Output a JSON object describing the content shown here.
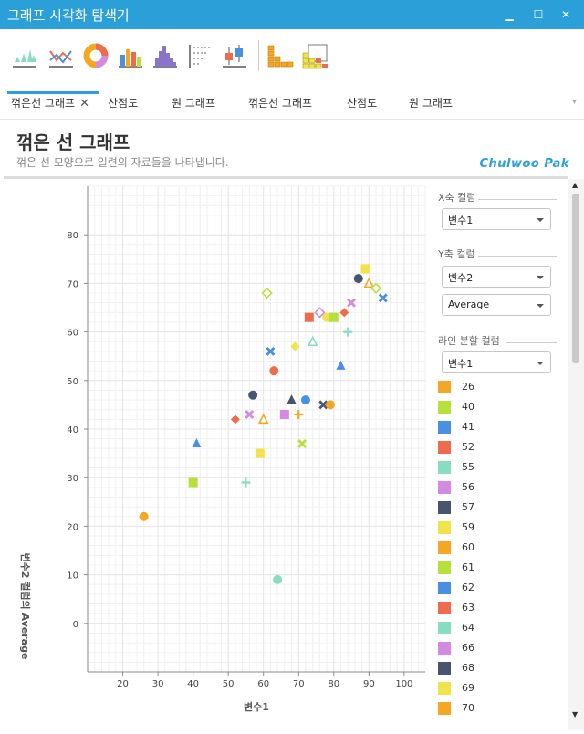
{
  "window": {
    "title": "그래프 시각화 탐색기"
  },
  "toolbar": {
    "icons": [
      "area-chart",
      "line-chart",
      "donut-chart",
      "bar-chart",
      "histogram",
      "dot-plot",
      "box-plot",
      "stacked-bar-chart",
      "grouped-bar-chart"
    ]
  },
  "tabs": [
    {
      "label": "꺾은선 그래프",
      "active": true,
      "closable": true
    },
    {
      "label": "산점도"
    },
    {
      "label": "원 그래프"
    },
    {
      "label": "꺾은선 그래프"
    },
    {
      "label": "산점도"
    },
    {
      "label": "원 그래프"
    }
  ],
  "page": {
    "title": "꺾은 선 그래프",
    "subtitle": "꺾은 선 모양으로 일련의 자료들을 나타냅니다.",
    "brand": "Chulwoo Pak"
  },
  "controls": {
    "x_column_title": "X축 컬럼",
    "x_column_value": "변수1",
    "y_column_title": "Y축 컬럼",
    "y_column_value": "변수2",
    "aggregate_value": "Average",
    "split_column_title": "라인 분할 컬럼",
    "split_column_value": "변수1"
  },
  "colors": {
    "accent": "#2b9fd8",
    "legend": [
      "#f5a623",
      "#b8e03c",
      "#4a90e2",
      "#ee6b4d",
      "#88dcc0",
      "#d38ae0",
      "#485570",
      "#f1e34a",
      "#f5a623",
      "#b8e03c",
      "#4a90e2",
      "#ee6b4d",
      "#88dcc0",
      "#d38ae0",
      "#485570",
      "#f1e34a",
      "#f5a623"
    ]
  },
  "legend": [
    "26",
    "40",
    "41",
    "52",
    "55",
    "56",
    "57",
    "59",
    "60",
    "61",
    "62",
    "63",
    "64",
    "66",
    "68",
    "69",
    "70"
  ],
  "chart_data": {
    "type": "scatter",
    "xlabel": "변수1",
    "ylabel": "변수2 컬럼의 Average",
    "xlim": [
      10,
      106
    ],
    "ylim": [
      -10,
      90
    ],
    "xticks": [
      20,
      30,
      40,
      50,
      60,
      70,
      80,
      90,
      100
    ],
    "yticks": [
      0,
      10,
      20,
      30,
      40,
      50,
      60,
      70,
      80
    ],
    "grid": true,
    "points": [
      {
        "x": 26,
        "y": 22,
        "shape": "circle",
        "color": "#f5a623"
      },
      {
        "x": 40,
        "y": 29,
        "shape": "square",
        "color": "#b8e03c"
      },
      {
        "x": 41,
        "y": 37,
        "shape": "triangle",
        "color": "#4a90e2"
      },
      {
        "x": 52,
        "y": 42,
        "shape": "diamond",
        "color": "#ee6b4d"
      },
      {
        "x": 55,
        "y": 29,
        "shape": "plus",
        "color": "#88dcc0"
      },
      {
        "x": 56,
        "y": 43,
        "shape": "cross",
        "color": "#d38ae0"
      },
      {
        "x": 57,
        "y": 47,
        "shape": "circle",
        "color": "#485570"
      },
      {
        "x": 59,
        "y": 35,
        "shape": "square",
        "color": "#f1e34a"
      },
      {
        "x": 60,
        "y": 42,
        "shape": "triangle-open",
        "color": "#f5a623"
      },
      {
        "x": 61,
        "y": 68,
        "shape": "diamond-open",
        "color": "#b8e03c"
      },
      {
        "x": 62,
        "y": 56,
        "shape": "cross",
        "color": "#4a90e2"
      },
      {
        "x": 63,
        "y": 52,
        "shape": "circle",
        "color": "#ee6b4d"
      },
      {
        "x": 64,
        "y": 9,
        "shape": "circle",
        "color": "#88dcc0"
      },
      {
        "x": 66,
        "y": 43,
        "shape": "square",
        "color": "#d38ae0"
      },
      {
        "x": 68,
        "y": 46,
        "shape": "triangle",
        "color": "#485570"
      },
      {
        "x": 69,
        "y": 57,
        "shape": "diamond",
        "color": "#f1e34a"
      },
      {
        "x": 70,
        "y": 43,
        "shape": "plus",
        "color": "#f5a623"
      },
      {
        "x": 71,
        "y": 37,
        "shape": "cross",
        "color": "#b8e03c"
      },
      {
        "x": 72,
        "y": 46,
        "shape": "circle",
        "color": "#4a90e2"
      },
      {
        "x": 73,
        "y": 63,
        "shape": "square",
        "color": "#ee6b4d"
      },
      {
        "x": 74,
        "y": 58,
        "shape": "triangle-open",
        "color": "#88dcc0"
      },
      {
        "x": 76,
        "y": 64,
        "shape": "diamond-open",
        "color": "#d38ae0"
      },
      {
        "x": 77,
        "y": 45,
        "shape": "cross",
        "color": "#485570"
      },
      {
        "x": 78,
        "y": 63,
        "shape": "circle",
        "color": "#f1e34a"
      },
      {
        "x": 79,
        "y": 45,
        "shape": "circle",
        "color": "#f5a623"
      },
      {
        "x": 80,
        "y": 63,
        "shape": "square",
        "color": "#b8e03c"
      },
      {
        "x": 82,
        "y": 53,
        "shape": "triangle",
        "color": "#4a90e2"
      },
      {
        "x": 83,
        "y": 64,
        "shape": "diamond",
        "color": "#ee6b4d"
      },
      {
        "x": 84,
        "y": 60,
        "shape": "plus",
        "color": "#88dcc0"
      },
      {
        "x": 85,
        "y": 66,
        "shape": "cross",
        "color": "#d38ae0"
      },
      {
        "x": 87,
        "y": 71,
        "shape": "circle",
        "color": "#485570"
      },
      {
        "x": 89,
        "y": 73,
        "shape": "square",
        "color": "#f1e34a"
      },
      {
        "x": 90,
        "y": 70,
        "shape": "triangle-open",
        "color": "#f5a623"
      },
      {
        "x": 92,
        "y": 69,
        "shape": "diamond-open",
        "color": "#b8e03c"
      },
      {
        "x": 94,
        "y": 67,
        "shape": "cross",
        "color": "#4a90e2"
      }
    ]
  }
}
